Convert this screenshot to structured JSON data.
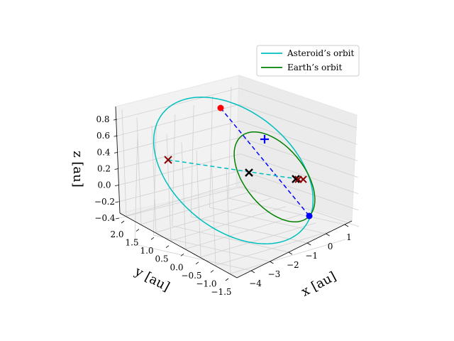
{
  "chart_data": {
    "type": "3d-line",
    "axes": {
      "x": {
        "label": "x [au]",
        "ticks": [
          "−4",
          "−3",
          "−2",
          "−1",
          "0",
          "1"
        ],
        "range": [
          -4.3,
          1.3
        ]
      },
      "y": {
        "label": "y [au]",
        "ticks": [
          "2.0",
          "1.5",
          "1.0",
          "0.5",
          "0.0",
          "−0.5",
          "−1.0",
          "−1.5"
        ],
        "range": [
          -1.6,
          2.1
        ]
      },
      "z": {
        "label": "z [au]",
        "ticks": [
          "0.8",
          "0.6",
          "0.4",
          "0.2",
          "0.0",
          "−0.2",
          "−0.4"
        ],
        "range": [
          -0.5,
          0.9
        ]
      }
    },
    "grid": true,
    "legend": {
      "placement": "top-right",
      "entries": [
        {
          "label": "Asteroid’s orbit",
          "color": "#00bfbf"
        },
        {
          "label": "Earth’s orbit",
          "color": "#008000"
        }
      ]
    },
    "series": [
      {
        "name": "Asteroid’s orbit",
        "kind": "orbit",
        "color": "#00bfbf"
      },
      {
        "name": "Earth’s orbit",
        "kind": "orbit",
        "color": "#008000"
      }
    ],
    "markers": [
      {
        "kind": "point",
        "color": "#ff0000"
      },
      {
        "kind": "point",
        "color": "#0000ff"
      },
      {
        "kind": "plus",
        "color": "#0000ff"
      },
      {
        "kind": "cross",
        "color": "#000000"
      },
      {
        "kind": "cross",
        "color": "#000000"
      },
      {
        "kind": "cross",
        "color": "#8b0000"
      },
      {
        "kind": "cross",
        "color": "#8b0000"
      },
      {
        "kind": "cross",
        "color": "#8b0000"
      }
    ],
    "lines": [
      {
        "kind": "dashed",
        "color": "#0000ff"
      },
      {
        "kind": "dashed",
        "color": "#00bfbf"
      }
    ]
  }
}
